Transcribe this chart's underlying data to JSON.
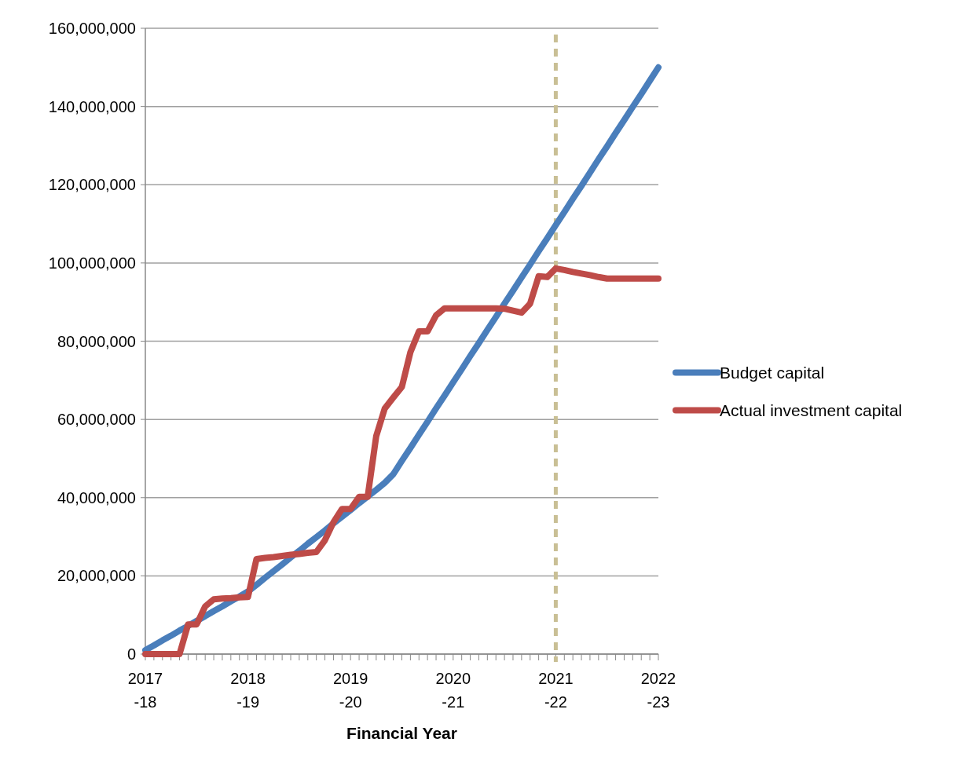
{
  "chart_data": {
    "type": "line",
    "xlabel": "Financial Year",
    "categories": [
      "2017-18",
      null,
      null,
      null,
      null,
      null,
      null,
      null,
      null,
      null,
      null,
      null,
      "2018-19",
      null,
      null,
      null,
      null,
      null,
      null,
      null,
      null,
      null,
      null,
      null,
      "2019-20",
      null,
      null,
      null,
      null,
      null,
      null,
      null,
      null,
      null,
      null,
      null,
      "2020-21",
      null,
      null,
      null,
      null,
      null,
      null,
      null,
      null,
      null,
      null,
      null,
      "2021-22",
      null,
      null,
      null,
      null,
      null,
      null,
      null,
      null,
      null,
      null,
      null,
      "2022-23"
    ],
    "ylim": [
      0,
      160000000
    ],
    "yticks": [
      {
        "value": 0,
        "label": "0"
      },
      {
        "value": 20000000,
        "label": "20,000,000"
      },
      {
        "value": 40000000,
        "label": "40,000,000"
      },
      {
        "value": 60000000,
        "label": "60,000,000"
      },
      {
        "value": 80000000,
        "label": "80,000,000"
      },
      {
        "value": 100000000,
        "label": "100,000,000"
      },
      {
        "value": 120000000,
        "label": "120,000,000"
      },
      {
        "value": 140000000,
        "label": "140,000,000"
      },
      {
        "value": 160000000,
        "label": "160,000,000"
      }
    ],
    "grid": "y",
    "legend": "right",
    "marker": "none",
    "line_style": "solid",
    "ref_lines": [
      {
        "axis": "x",
        "value": "2021-22",
        "color": "#c9bf95",
        "line_style": "dashed"
      }
    ],
    "series": [
      {
        "name": "Budget capital",
        "color": "#4a7ebb",
        "values": [
          1000000,
          2200000,
          3500000,
          4700000,
          6000000,
          7200000,
          8500000,
          9700000,
          11000000,
          12200000,
          13500000,
          14700000,
          16000000,
          17700000,
          19500000,
          21200000,
          22900000,
          24700000,
          26400000,
          28200000,
          29900000,
          31600000,
          33400000,
          35100000,
          36800000,
          38600000,
          40300000,
          42000000,
          43800000,
          46000000,
          49400000,
          52700000,
          56100000,
          59400000,
          62800000,
          66100000,
          69500000,
          72800000,
          76200000,
          79500000,
          82900000,
          86200000,
          89600000,
          92900000,
          96300000,
          99600000,
          103000000,
          106300000,
          109700000,
          113000000,
          116400000,
          119700000,
          123100000,
          126500000,
          129800000,
          133200000,
          136500000,
          139900000,
          143200000,
          146600000,
          150000000
        ]
      },
      {
        "name": "Actual investment capital",
        "color": "#be4b48",
        "values": [
          0,
          0,
          0,
          0,
          0,
          7600000,
          7600000,
          12200000,
          14000000,
          14200000,
          14300000,
          14500000,
          14600000,
          24300000,
          24600000,
          24800000,
          25100000,
          25400000,
          25600000,
          25900000,
          26100000,
          29100000,
          33700000,
          37100000,
          37100000,
          40200000,
          40200000,
          55700000,
          62800000,
          65600000,
          68300000,
          77200000,
          82500000,
          82500000,
          86600000,
          88400000,
          88400000,
          88400000,
          88400000,
          88400000,
          88400000,
          88400000,
          88300000,
          87800000,
          87300000,
          89600000,
          96600000,
          96400000,
          98600000,
          98200000,
          97700000,
          97300000,
          96900000,
          96400000,
          96000000,
          96000000,
          96000000,
          96000000,
          96000000,
          96000000,
          96000000
        ]
      }
    ]
  }
}
